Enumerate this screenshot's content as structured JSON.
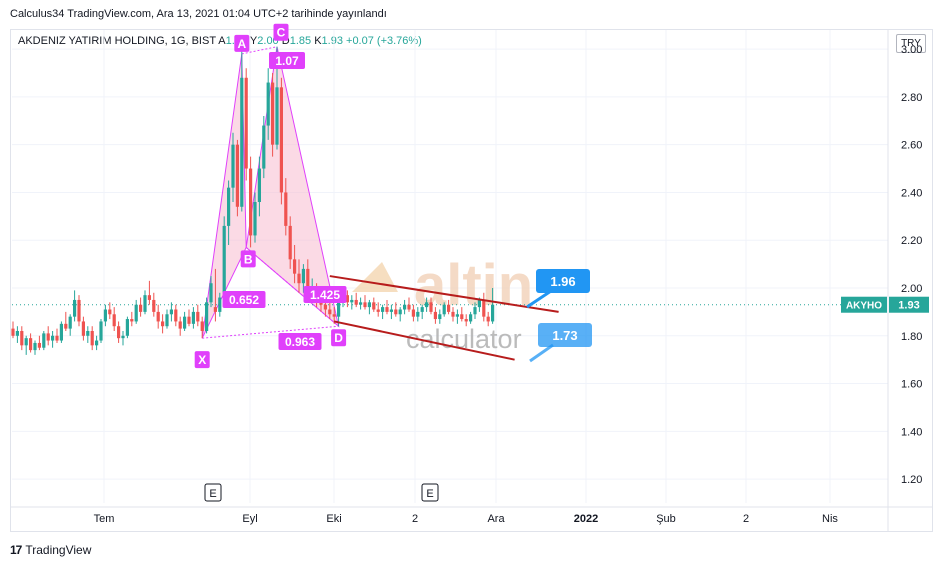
{
  "header": {
    "caption": "Calculus34 TradingView.com, Ara 13, 2021 01:04 UTC+2 tarihinde yayınlandı"
  },
  "legend": {
    "symbol": "AKDENIZ YATIRIM HOLDING, 1G, BIST",
    "open_label": "A",
    "open": "1.86",
    "high_label": "Y",
    "high": "2.00",
    "low_label": "D",
    "low": "1.85",
    "close_label": "K",
    "close": "1.93",
    "change": "+0.07 (+3.76%)"
  },
  "currency": "TRY",
  "footer": {
    "brand": "TradingView",
    "logo": "tradingview-logo-icon"
  },
  "colors": {
    "up": "#26a69a",
    "down": "#ef5350",
    "pattern": "#e040fb",
    "pattern_fill": "#f8bbd0",
    "channel": "#b71c1c",
    "callout": "#2196f3",
    "price_tag": "#26a69a"
  },
  "chart_data": {
    "type": "candlestick",
    "ylim": [
      1.1,
      3.08
    ],
    "y_ticks": [
      "3.00",
      "2.80",
      "2.60",
      "2.40",
      "2.20",
      "2.00",
      "1.80",
      "1.60",
      "1.40",
      "1.20"
    ],
    "x_labels": [
      "Tem",
      "Eyl",
      "Eki",
      "2",
      "Ara",
      "2022",
      "Şub",
      "2",
      "Nis"
    ],
    "current_price": {
      "ticker": "AKYHO",
      "value": "1.93"
    },
    "event_markers": [
      "E",
      "E"
    ],
    "pattern": {
      "name": "Harmonic (Cypher/Bat-like) XABCD",
      "points": [
        {
          "label": "X",
          "index": 43,
          "price": 1.79
        },
        {
          "label": "A",
          "index": 52,
          "price": 2.98
        },
        {
          "label": "B",
          "index": 53,
          "price": 2.17
        },
        {
          "label": "C",
          "index": 60,
          "price": 3.01
        },
        {
          "label": "D",
          "index": 74,
          "price": 1.84
        }
      ],
      "ratios": [
        {
          "text": "0.652",
          "between": "XAB"
        },
        {
          "text": "1.07",
          "between": "ABC"
        },
        {
          "text": "1.425",
          "between": "BCD"
        },
        {
          "text": "0.963",
          "between": "XAD"
        }
      ]
    },
    "channel": {
      "upper": [
        {
          "index": 72,
          "price": 2.05
        },
        {
          "index": 124,
          "price": 1.9
        }
      ],
      "lower": [
        {
          "index": 73,
          "price": 1.86
        },
        {
          "index": 114,
          "price": 1.7
        }
      ]
    },
    "callouts": [
      {
        "text": "1.96",
        "price": 1.96
      },
      {
        "text": "1.73",
        "price": 1.73
      }
    ],
    "watermark": {
      "line1": "altin",
      "line2": "calculator"
    },
    "candles": [
      [
        1.83,
        1.86,
        1.79,
        1.8
      ],
      [
        1.8,
        1.84,
        1.77,
        1.82
      ],
      [
        1.82,
        1.84,
        1.74,
        1.76
      ],
      [
        1.76,
        1.8,
        1.72,
        1.79
      ],
      [
        1.79,
        1.81,
        1.73,
        1.74
      ],
      [
        1.74,
        1.78,
        1.72,
        1.77
      ],
      [
        1.77,
        1.8,
        1.74,
        1.75
      ],
      [
        1.75,
        1.82,
        1.74,
        1.81
      ],
      [
        1.81,
        1.84,
        1.76,
        1.78
      ],
      [
        1.78,
        1.82,
        1.75,
        1.8
      ],
      [
        1.8,
        1.83,
        1.77,
        1.78
      ],
      [
        1.78,
        1.86,
        1.77,
        1.85
      ],
      [
        1.85,
        1.9,
        1.82,
        1.83
      ],
      [
        1.83,
        1.89,
        1.8,
        1.88
      ],
      [
        1.88,
        1.99,
        1.86,
        1.95
      ],
      [
        1.95,
        1.97,
        1.84,
        1.86
      ],
      [
        1.86,
        1.88,
        1.78,
        1.8
      ],
      [
        1.8,
        1.84,
        1.77,
        1.82
      ],
      [
        1.82,
        1.84,
        1.74,
        1.76
      ],
      [
        1.76,
        1.8,
        1.74,
        1.78
      ],
      [
        1.78,
        1.87,
        1.77,
        1.86
      ],
      [
        1.86,
        1.93,
        1.84,
        1.91
      ],
      [
        1.91,
        1.94,
        1.87,
        1.89
      ],
      [
        1.89,
        1.92,
        1.82,
        1.84
      ],
      [
        1.84,
        1.86,
        1.77,
        1.79
      ],
      [
        1.79,
        1.82,
        1.76,
        1.8
      ],
      [
        1.8,
        1.88,
        1.79,
        1.87
      ],
      [
        1.87,
        1.9,
        1.84,
        1.86
      ],
      [
        1.86,
        1.95,
        1.85,
        1.93
      ],
      [
        1.93,
        1.96,
        1.88,
        1.9
      ],
      [
        1.9,
        1.99,
        1.89,
        1.97
      ],
      [
        1.97,
        2.03,
        1.93,
        1.95
      ],
      [
        1.95,
        1.98,
        1.88,
        1.9
      ],
      [
        1.9,
        1.93,
        1.83,
        1.86
      ],
      [
        1.86,
        1.89,
        1.81,
        1.84
      ],
      [
        1.84,
        1.91,
        1.83,
        1.89
      ],
      [
        1.89,
        1.94,
        1.86,
        1.91
      ],
      [
        1.91,
        1.93,
        1.84,
        1.86
      ],
      [
        1.86,
        1.88,
        1.8,
        1.83
      ],
      [
        1.83,
        1.9,
        1.82,
        1.88
      ],
      [
        1.88,
        1.91,
        1.84,
        1.85
      ],
      [
        1.85,
        1.92,
        1.83,
        1.9
      ],
      [
        1.9,
        1.93,
        1.84,
        1.86
      ],
      [
        1.86,
        1.88,
        1.79,
        1.82
      ],
      [
        1.82,
        1.96,
        1.81,
        1.94
      ],
      [
        1.94,
        2.05,
        1.92,
        2.02
      ],
      [
        1.92,
        2.08,
        1.86,
        1.9
      ],
      [
        1.9,
        1.98,
        1.88,
        1.96
      ],
      [
        1.96,
        2.3,
        1.95,
        2.26
      ],
      [
        2.26,
        2.45,
        2.18,
        2.42
      ],
      [
        2.42,
        2.65,
        2.36,
        2.6
      ],
      [
        2.6,
        2.62,
        2.3,
        2.34
      ],
      [
        2.34,
        2.99,
        2.32,
        2.88
      ],
      [
        2.88,
        2.92,
        2.45,
        2.5
      ],
      [
        2.5,
        2.55,
        2.17,
        2.22
      ],
      [
        2.22,
        2.4,
        2.19,
        2.36
      ],
      [
        2.36,
        2.55,
        2.3,
        2.5
      ],
      [
        2.5,
        2.72,
        2.46,
        2.68
      ],
      [
        2.68,
        2.92,
        2.62,
        2.86
      ],
      [
        2.86,
        2.9,
        2.55,
        2.6
      ],
      [
        2.6,
        3.01,
        2.58,
        2.84
      ],
      [
        2.84,
        2.88,
        2.35,
        2.4
      ],
      [
        2.4,
        2.46,
        2.22,
        2.26
      ],
      [
        2.26,
        2.3,
        2.08,
        2.12
      ],
      [
        2.12,
        2.18,
        2.02,
        2.06
      ],
      [
        2.06,
        2.12,
        1.98,
        2.02
      ],
      [
        2.02,
        2.1,
        1.98,
        2.08
      ],
      [
        2.08,
        2.12,
        1.96,
        1.98
      ],
      [
        1.98,
        2.04,
        1.94,
        2.0
      ],
      [
        2.0,
        2.02,
        1.92,
        1.95
      ],
      [
        1.95,
        1.99,
        1.9,
        1.93
      ],
      [
        1.93,
        1.96,
        1.88,
        1.91
      ],
      [
        1.91,
        1.95,
        1.87,
        1.89
      ],
      [
        1.89,
        1.92,
        1.85,
        1.88
      ],
      [
        1.88,
        1.96,
        1.84,
        1.94
      ],
      [
        1.94,
        2.0,
        1.92,
        1.97
      ],
      [
        1.97,
        1.99,
        1.92,
        1.94
      ],
      [
        1.94,
        1.97,
        1.91,
        1.95
      ],
      [
        1.95,
        1.98,
        1.92,
        1.93
      ],
      [
        1.93,
        1.96,
        1.91,
        1.94
      ],
      [
        1.94,
        1.97,
        1.91,
        1.92
      ],
      [
        1.92,
        1.95,
        1.89,
        1.94
      ],
      [
        1.94,
        1.96,
        1.9,
        1.91
      ],
      [
        1.91,
        1.94,
        1.88,
        1.9
      ],
      [
        1.9,
        1.93,
        1.87,
        1.92
      ],
      [
        1.92,
        1.95,
        1.89,
        1.9
      ],
      [
        1.9,
        1.93,
        1.87,
        1.91
      ],
      [
        1.91,
        1.94,
        1.88,
        1.89
      ],
      [
        1.89,
        1.92,
        1.86,
        1.91
      ],
      [
        1.91,
        1.95,
        1.89,
        1.93
      ],
      [
        1.93,
        1.96,
        1.9,
        1.91
      ],
      [
        1.91,
        1.93,
        1.86,
        1.88
      ],
      [
        1.88,
        1.92,
        1.86,
        1.9
      ],
      [
        1.9,
        1.93,
        1.87,
        1.92
      ],
      [
        1.92,
        1.96,
        1.9,
        1.94
      ],
      [
        1.94,
        1.96,
        1.89,
        1.9
      ],
      [
        1.9,
        1.92,
        1.85,
        1.87
      ],
      [
        1.87,
        1.91,
        1.85,
        1.89
      ],
      [
        1.89,
        1.94,
        1.88,
        1.93
      ],
      [
        1.93,
        1.95,
        1.89,
        1.9
      ],
      [
        1.9,
        1.92,
        1.86,
        1.88
      ],
      [
        1.88,
        1.91,
        1.85,
        1.89
      ],
      [
        1.89,
        1.92,
        1.86,
        1.87
      ],
      [
        1.87,
        1.89,
        1.84,
        1.86
      ],
      [
        1.86,
        1.9,
        1.85,
        1.89
      ],
      [
        1.89,
        1.94,
        1.87,
        1.92
      ],
      [
        1.92,
        1.96,
        1.9,
        1.95
      ],
      [
        1.95,
        1.98,
        1.86,
        1.88
      ],
      [
        1.88,
        1.9,
        1.84,
        1.86
      ],
      [
        1.86,
        2.0,
        1.85,
        1.93
      ]
    ]
  }
}
